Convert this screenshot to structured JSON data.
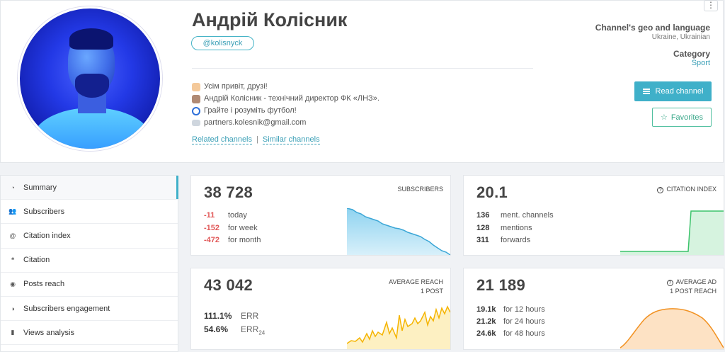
{
  "profile": {
    "name": "Андрій Колісник",
    "handle": "@kolisnyck",
    "bio": [
      "Усім привіт, друзі!",
      "Андрій Колісник - технічний директор ФК «ЛНЗ».",
      "Грайте і розуміть футбол!",
      "partners.kolesnik@gmail.com"
    ],
    "bio_icons": [
      "waving-hand-icon",
      "man-technologist-icon",
      "soccer-ball-icon",
      "envelope-icon"
    ],
    "links": {
      "related": "Related channels",
      "separator": "|",
      "similar": "Similar channels"
    },
    "menu_glyph": "⋮",
    "geo_title": "Channel's geo and language",
    "geo_value": "Ukraine, Ukrainian",
    "category_title": "Category",
    "category_value": "Sport",
    "read_button": "Read channel",
    "favorites_button": "Favorites",
    "favorites_glyph": "☆"
  },
  "sidebar": {
    "items": [
      {
        "label": "Summary",
        "icon": "dashboard-icon",
        "glyph": "◔"
      },
      {
        "label": "Subscribers",
        "icon": "users-icon",
        "glyph": "👥"
      },
      {
        "label": "Citation index",
        "icon": "at-icon",
        "glyph": "@"
      },
      {
        "label": "Citation",
        "icon": "quote-icon",
        "glyph": "❝"
      },
      {
        "label": "Posts reach",
        "icon": "eye-icon",
        "glyph": "◉"
      },
      {
        "label": "Subscribers engagement",
        "icon": "engagement-icon",
        "glyph": "◑"
      },
      {
        "label": "Views analysis",
        "icon": "bar-chart-icon",
        "glyph": "▮"
      }
    ]
  },
  "cards": {
    "subscribers": {
      "value": "38 728",
      "label": "SUBSCRIBERS",
      "rows": [
        {
          "value": "-11",
          "label": "today"
        },
        {
          "value": "-152",
          "label": "for week"
        },
        {
          "value": "-472",
          "label": "for month"
        }
      ]
    },
    "citation": {
      "value": "20.1",
      "label": "CITATION INDEX",
      "label_glyph": "?",
      "rows": [
        {
          "value": "136",
          "label": "ment. channels"
        },
        {
          "value": "128",
          "label": "mentions"
        },
        {
          "value": "311",
          "label": "forwards"
        }
      ]
    },
    "reach": {
      "value": "43 042",
      "label_line1": "AVERAGE REACH",
      "label_line2": "1 POST",
      "rows": [
        {
          "value": "111.1%",
          "label": "ERR",
          "sub": ""
        },
        {
          "value": "54.6%",
          "label": "ERR",
          "sub": "24"
        }
      ]
    },
    "ad_reach": {
      "value": "21 189",
      "label_line1": "AVERAGE AD",
      "label_line2": "1 POST REACH",
      "label_glyph": "?",
      "rows": [
        {
          "value": "19.1k",
          "label": "for 12 hours"
        },
        {
          "value": "21.2k",
          "label": "for 24 hours"
        },
        {
          "value": "24.6k",
          "label": "for 48 hours"
        }
      ]
    }
  },
  "colors": {
    "accent": "#3fb0c9",
    "negative": "#e15757",
    "favorites": "#3aa88a",
    "sparkline_blue": "#3ba6d6",
    "sparkline_green": "#3cc36b",
    "sparkline_yellow": "#f5b400",
    "sparkline_orange": "#f29222"
  }
}
